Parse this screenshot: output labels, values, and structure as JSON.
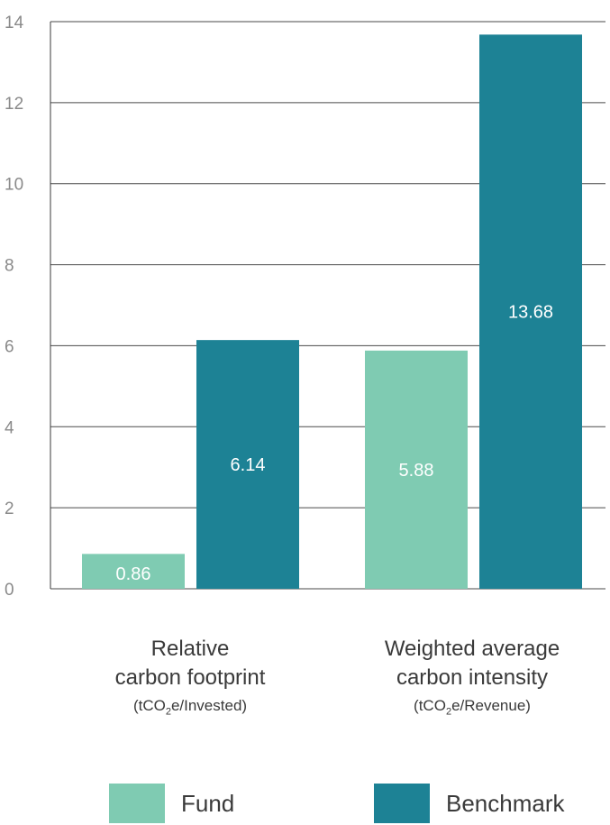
{
  "chart_data": {
    "type": "bar",
    "categories": [
      {
        "line1": "Relative",
        "line2": "carbon footprint",
        "unit_prefix": "(tCO",
        "unit_sub": "2",
        "unit_suffix": "e/Invested)"
      },
      {
        "line1": "Weighted average",
        "line2": "carbon intensity",
        "unit_prefix": "(tCO",
        "unit_sub": "2",
        "unit_suffix": "e/Revenue)"
      }
    ],
    "series": [
      {
        "name": "Fund",
        "color": "#7fcbb2",
        "values": [
          0.86,
          5.88
        ],
        "labels": [
          "0.86",
          "5.88"
        ]
      },
      {
        "name": "Benchmark",
        "color": "#1d8295",
        "values": [
          6.14,
          13.68
        ],
        "labels": [
          "6.14",
          "13.68"
        ]
      }
    ],
    "ylim": [
      0,
      14
    ],
    "yticks": [
      "0",
      "2",
      "4",
      "6",
      "8",
      "10",
      "12",
      "14"
    ],
    "grid": true,
    "legend_position": "bottom"
  }
}
